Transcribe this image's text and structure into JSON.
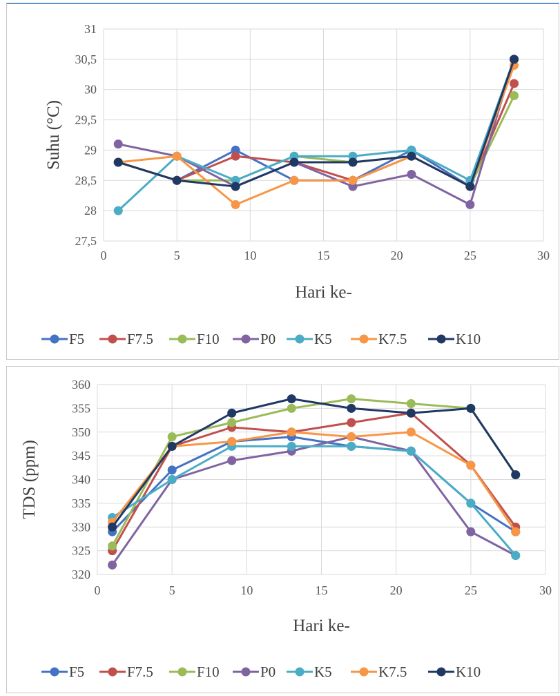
{
  "chart_data": [
    {
      "type": "line",
      "title": "",
      "xlabel": "Hari ke-",
      "ylabel": "Suhu (°C)",
      "xlim": [
        0,
        30
      ],
      "ylim": [
        27.5,
        31
      ],
      "x_ticks": [
        "0",
        "5",
        "10",
        "15",
        "20",
        "25",
        "30"
      ],
      "y_ticks": [
        "27,5",
        "28",
        "28,5",
        "29",
        "29,5",
        "30",
        "30,5",
        "31"
      ],
      "grid": true,
      "legend_position": "bottom",
      "x": [
        1,
        5,
        9,
        13,
        17,
        21,
        25,
        28
      ],
      "series": [
        {
          "name": "F5",
          "color": "#4472C4",
          "values": [
            28.8,
            28.5,
            29.0,
            28.5,
            28.5,
            29.0,
            28.4,
            30.5
          ]
        },
        {
          "name": "F7.5",
          "color": "#C0504D",
          "values": [
            28.8,
            28.5,
            28.9,
            28.8,
            28.5,
            28.9,
            28.4,
            30.1
          ]
        },
        {
          "name": "F10",
          "color": "#9BBB59",
          "values": [
            28.8,
            28.5,
            28.5,
            28.9,
            28.8,
            28.9,
            28.4,
            29.9
          ]
        },
        {
          "name": "P0",
          "color": "#8064A2",
          "values": [
            29.1,
            28.9,
            28.4,
            28.8,
            28.4,
            28.6,
            28.1,
            30.5
          ]
        },
        {
          "name": "K5",
          "color": "#4BACC6",
          "values": [
            28.0,
            28.9,
            28.5,
            28.9,
            28.9,
            29.0,
            28.5,
            30.5
          ]
        },
        {
          "name": "K7.5",
          "color": "#F79646",
          "values": [
            28.8,
            28.9,
            28.1,
            28.5,
            28.5,
            28.9,
            28.4,
            30.4
          ]
        },
        {
          "name": "K10",
          "color": "#1F3864",
          "values": [
            28.8,
            28.5,
            28.4,
            28.8,
            28.8,
            28.9,
            28.4,
            30.5
          ]
        }
      ]
    },
    {
      "type": "line",
      "title": "",
      "xlabel": "Hari ke-",
      "ylabel": "TDS (ppm)",
      "xlim": [
        0,
        30
      ],
      "ylim": [
        320,
        360
      ],
      "x_ticks": [
        "0",
        "5",
        "10",
        "15",
        "20",
        "25",
        "30"
      ],
      "y_ticks": [
        "320",
        "325",
        "330",
        "335",
        "340",
        "345",
        "350",
        "355",
        "360"
      ],
      "grid": true,
      "legend_position": "bottom",
      "x": [
        1,
        5,
        9,
        13,
        17,
        21,
        25,
        28
      ],
      "series": [
        {
          "name": "F5",
          "color": "#4472C4",
          "values": [
            329,
            342,
            348,
            349,
            347,
            346,
            335,
            329
          ]
        },
        {
          "name": "F7.5",
          "color": "#C0504D",
          "values": [
            325,
            347,
            351,
            350,
            352,
            354,
            343,
            330
          ]
        },
        {
          "name": "F10",
          "color": "#9BBB59",
          "values": [
            326,
            349,
            352,
            355,
            357,
            356,
            355,
            341
          ]
        },
        {
          "name": "P0",
          "color": "#8064A2",
          "values": [
            322,
            340,
            344,
            346,
            349,
            346,
            329,
            324
          ]
        },
        {
          "name": "K5",
          "color": "#4BACC6",
          "values": [
            332,
            340,
            347,
            347,
            347,
            346,
            335,
            324
          ]
        },
        {
          "name": "K7.5",
          "color": "#F79646",
          "values": [
            331,
            347,
            348,
            350,
            349,
            350,
            343,
            329
          ]
        },
        {
          "name": "K10",
          "color": "#1F3864",
          "values": [
            330,
            347,
            354,
            357,
            355,
            354,
            355,
            341
          ]
        }
      ]
    }
  ]
}
